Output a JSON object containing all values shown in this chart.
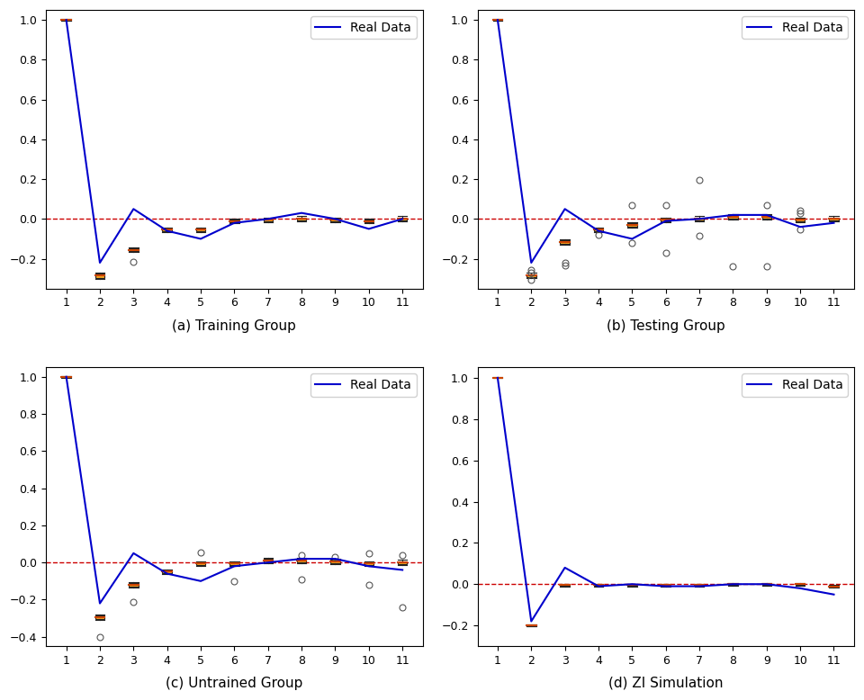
{
  "subplots": [
    {
      "title": "(a) Training Group",
      "ylim": [
        -0.35,
        1.05
      ],
      "yticks": [
        -0.2,
        0.0,
        0.2,
        0.4,
        0.6,
        0.8,
        1.0
      ],
      "real_data": [
        1.0,
        -0.22,
        0.05,
        -0.06,
        -0.1,
        -0.02,
        0.0,
        0.03,
        0.0,
        -0.05,
        0.0
      ],
      "box_medians": [
        1.0,
        -0.285,
        -0.155,
        -0.055,
        -0.055,
        -0.01,
        -0.005,
        0.0,
        -0.005,
        -0.01,
        0.0
      ],
      "box_q1": [
        0.997,
        -0.295,
        -0.163,
        -0.063,
        -0.063,
        -0.018,
        -0.013,
        -0.008,
        -0.013,
        -0.018,
        -0.008
      ],
      "box_q3": [
        1.003,
        -0.275,
        -0.147,
        -0.047,
        -0.047,
        -0.002,
        0.003,
        0.008,
        0.003,
        -0.002,
        0.008
      ],
      "box_whislo": [
        0.995,
        -0.3,
        -0.168,
        -0.068,
        -0.068,
        -0.023,
        -0.018,
        -0.013,
        -0.018,
        -0.023,
        -0.013
      ],
      "box_whishi": [
        1.005,
        -0.27,
        -0.142,
        -0.042,
        -0.042,
        0.003,
        0.008,
        0.013,
        0.008,
        0.003,
        0.013
      ],
      "outliers": [
        [],
        [],
        [
          -0.215
        ],
        [],
        [],
        [],
        [],
        [],
        [],
        [],
        []
      ]
    },
    {
      "title": "(b) Testing Group",
      "ylim": [
        -0.35,
        1.05
      ],
      "yticks": [
        -0.2,
        0.0,
        0.2,
        0.4,
        0.6,
        0.8,
        1.0
      ],
      "real_data": [
        1.0,
        -0.22,
        0.05,
        -0.06,
        -0.1,
        -0.01,
        0.0,
        0.02,
        0.02,
        -0.04,
        -0.02
      ],
      "box_medians": [
        1.0,
        -0.285,
        -0.115,
        -0.055,
        -0.03,
        -0.005,
        0.0,
        0.01,
        0.01,
        -0.005,
        0.0
      ],
      "box_q1": [
        0.997,
        -0.293,
        -0.123,
        -0.063,
        -0.038,
        -0.013,
        -0.008,
        0.002,
        0.002,
        -0.013,
        -0.008
      ],
      "box_q3": [
        1.003,
        -0.277,
        -0.107,
        -0.047,
        -0.022,
        0.003,
        0.008,
        0.018,
        0.018,
        0.003,
        0.008
      ],
      "box_whislo": [
        0.995,
        -0.298,
        -0.128,
        -0.068,
        -0.043,
        -0.018,
        -0.013,
        -0.003,
        -0.003,
        -0.018,
        -0.013
      ],
      "box_whishi": [
        1.005,
        -0.272,
        -0.102,
        -0.042,
        -0.017,
        0.008,
        0.013,
        0.023,
        0.023,
        0.008,
        0.013
      ],
      "outliers": [
        [],
        [
          -0.255,
          -0.27,
          -0.305
        ],
        [
          -0.22,
          -0.235
        ],
        [
          -0.08
        ],
        [
          0.07,
          -0.12
        ],
        [
          0.07,
          -0.17
        ],
        [
          0.195,
          -0.085
        ],
        [
          -0.24
        ],
        [
          0.07,
          -0.24
        ],
        [
          0.04,
          0.03,
          -0.055
        ],
        []
      ]
    },
    {
      "title": "(c) Untrained Group",
      "ylim": [
        -0.45,
        1.05
      ],
      "yticks": [
        -0.4,
        -0.2,
        0.0,
        0.2,
        0.4,
        0.6,
        0.8,
        1.0
      ],
      "real_data": [
        1.0,
        -0.22,
        0.05,
        -0.06,
        -0.1,
        -0.02,
        0.0,
        0.02,
        0.02,
        -0.02,
        -0.04
      ],
      "box_medians": [
        1.0,
        -0.295,
        -0.12,
        -0.05,
        -0.005,
        -0.005,
        0.01,
        0.01,
        0.005,
        -0.005,
        0.0
      ],
      "box_q1": [
        0.997,
        -0.303,
        -0.128,
        -0.058,
        -0.013,
        -0.013,
        0.002,
        0.002,
        -0.003,
        -0.013,
        -0.008
      ],
      "box_q3": [
        1.003,
        -0.287,
        -0.112,
        -0.042,
        0.003,
        0.003,
        0.018,
        0.018,
        0.013,
        0.003,
        0.008
      ],
      "box_whislo": [
        0.995,
        -0.308,
        -0.133,
        -0.063,
        -0.018,
        -0.018,
        -0.003,
        -0.003,
        -0.008,
        -0.018,
        -0.013
      ],
      "box_whishi": [
        1.005,
        -0.282,
        -0.107,
        -0.037,
        0.008,
        0.008,
        0.023,
        0.023,
        0.018,
        0.008,
        0.013
      ],
      "outliers": [
        [],
        [
          -0.4
        ],
        [
          -0.21
        ],
        [],
        [
          0.055
        ],
        [
          -0.1
        ],
        [],
        [
          0.04,
          -0.09
        ],
        [
          0.03
        ],
        [
          0.05,
          -0.12
        ],
        [
          0.04,
          -0.24
        ]
      ]
    },
    {
      "title": "(d) ZI Simulation",
      "ylim": [
        -0.3,
        1.05
      ],
      "yticks": [
        -0.2,
        0.0,
        0.2,
        0.4,
        0.6,
        0.8,
        1.0
      ],
      "real_data": [
        1.0,
        -0.18,
        0.08,
        -0.01,
        0.0,
        -0.01,
        -0.01,
        0.0,
        0.0,
        -0.02,
        -0.05
      ],
      "box_medians": [
        1.0,
        -0.2,
        -0.005,
        -0.005,
        -0.005,
        -0.005,
        -0.005,
        0.0,
        0.0,
        0.0,
        -0.01
      ],
      "box_q1": [
        0.999,
        -0.203,
        -0.008,
        -0.008,
        -0.008,
        -0.008,
        -0.008,
        -0.003,
        -0.003,
        -0.003,
        -0.013
      ],
      "box_q3": [
        1.001,
        -0.197,
        -0.002,
        -0.002,
        -0.002,
        -0.002,
        -0.002,
        0.003,
        0.003,
        0.003,
        -0.007
      ],
      "box_whislo": [
        0.998,
        -0.205,
        -0.011,
        -0.011,
        -0.011,
        -0.011,
        -0.011,
        -0.006,
        -0.006,
        -0.006,
        -0.016
      ],
      "box_whishi": [
        1.002,
        -0.195,
        0.001,
        0.001,
        0.001,
        0.001,
        0.001,
        0.006,
        0.006,
        0.006,
        -0.004
      ],
      "outliers": [
        [],
        [],
        [],
        [],
        [],
        [],
        [],
        [],
        [],
        [],
        []
      ]
    }
  ],
  "x_positions": [
    1,
    2,
    3,
    4,
    5,
    6,
    7,
    8,
    9,
    10,
    11
  ],
  "line_color": "#0000cc",
  "box_facecolor": "#f5a623",
  "box_edgecolor": "#222222",
  "median_color": "#cc4400",
  "dashed_line_color": "#cc0000",
  "outlier_color": "#555555",
  "legend_label": "Real Data",
  "box_width": 0.28
}
